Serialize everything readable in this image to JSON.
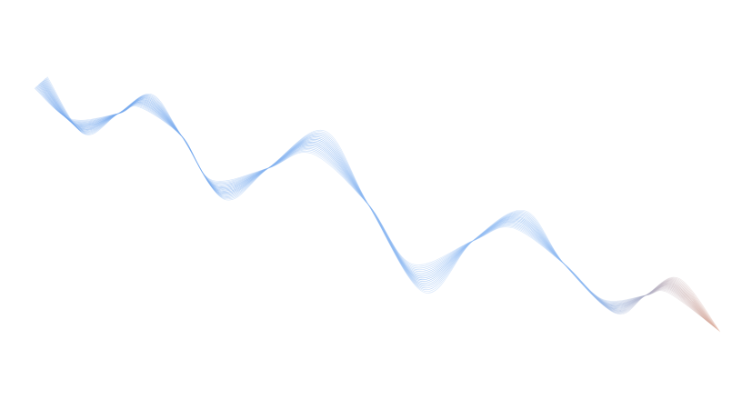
{
  "artwork": {
    "kind": "decorative-wave-lines",
    "colors": {
      "background": "#ffffff",
      "start": "#6fa4ec",
      "middle": "#8fbaf2",
      "end": "#f0a47e"
    }
  }
}
